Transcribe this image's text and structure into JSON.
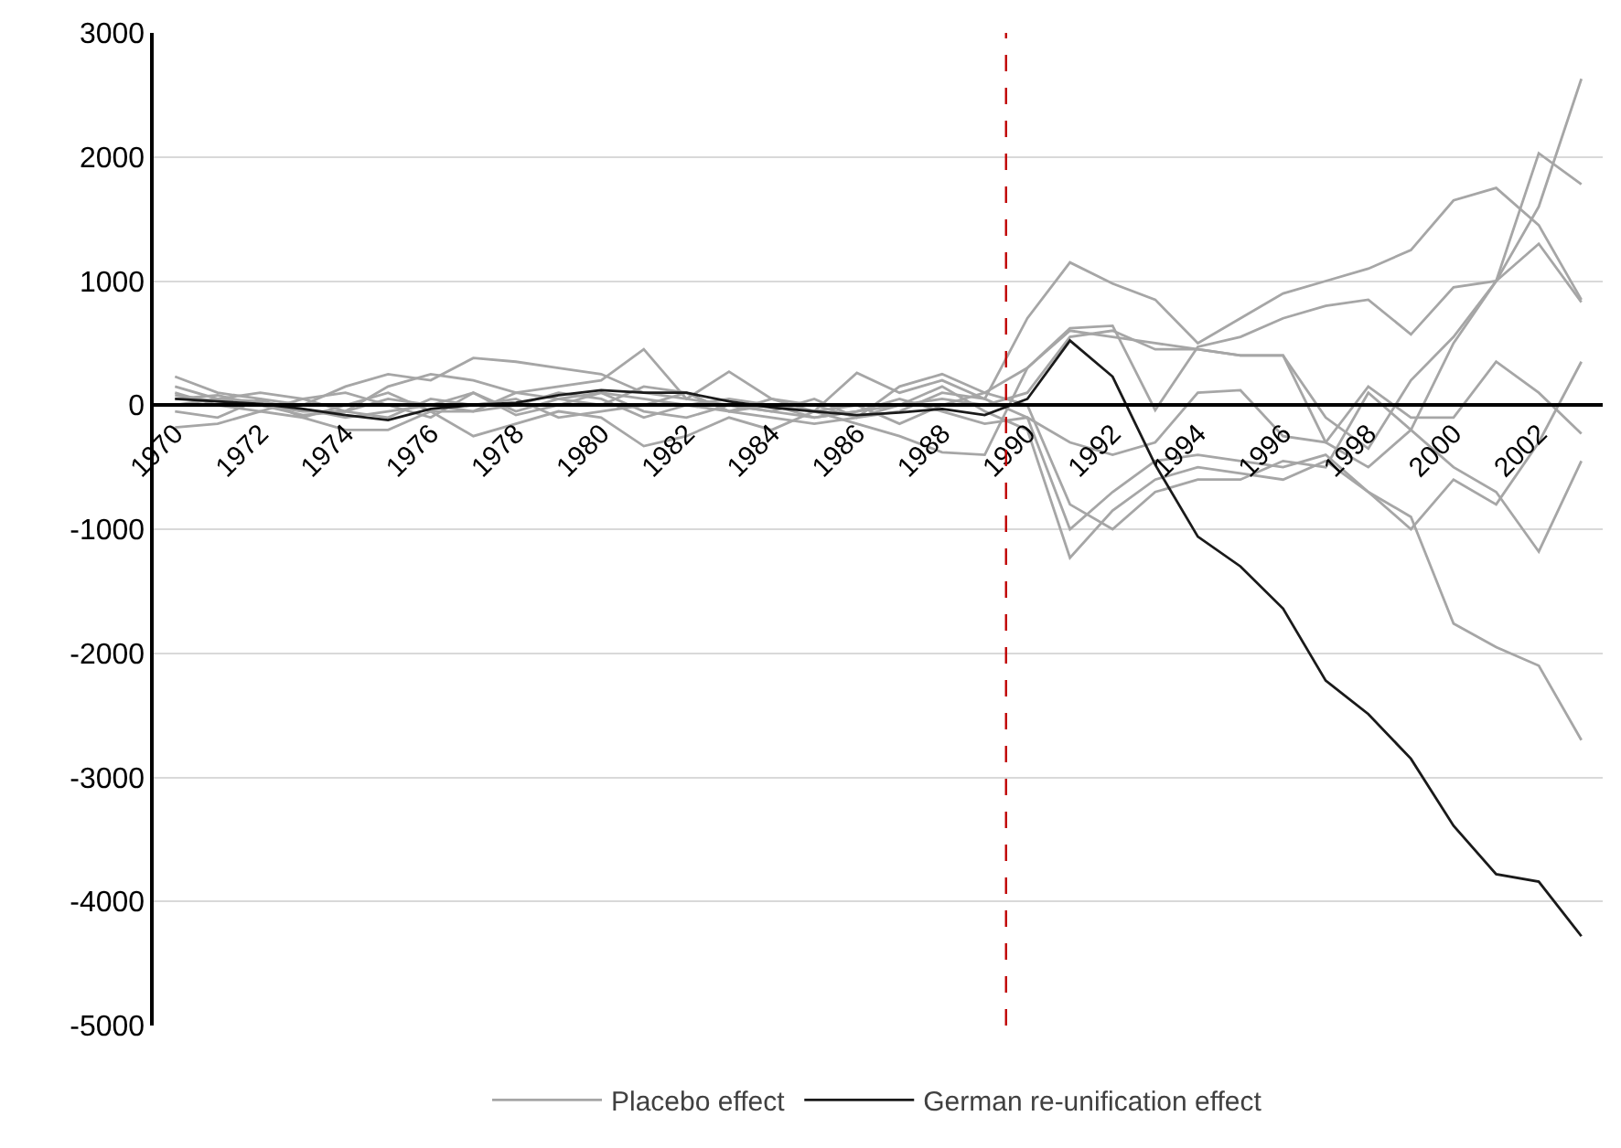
{
  "chart_data": {
    "type": "line",
    "x": [
      1970,
      1971,
      1972,
      1973,
      1974,
      1975,
      1976,
      1977,
      1978,
      1979,
      1980,
      1981,
      1982,
      1983,
      1984,
      1985,
      1986,
      1987,
      1988,
      1989,
      1990,
      1991,
      1992,
      1993,
      1994,
      1995,
      1996,
      1997,
      1998,
      1999,
      2000,
      2001,
      2002,
      2003
    ],
    "series": [
      {
        "name": "Placebo effect",
        "color": "#a6a6a6",
        "values": [
          230,
          100,
          50,
          0,
          150,
          250,
          200,
          380,
          350,
          300,
          250,
          100,
          50,
          0,
          -50,
          -100,
          -50,
          0,
          50,
          0,
          100,
          550,
          600,
          450,
          450,
          400,
          400,
          -100,
          -350,
          200,
          550,
          1000,
          1600,
          2630
        ]
      },
      {
        "color": "#a6a6a6",
        "values": [
          -180,
          -150,
          -50,
          -100,
          -200,
          -200,
          -50,
          -250,
          -150,
          -50,
          -100,
          -330,
          -250,
          -100,
          -200,
          -50,
          -150,
          -250,
          -380,
          -400,
          300,
          600,
          550,
          500,
          450,
          400,
          400,
          -300,
          -500,
          -200,
          500,
          1000,
          2030,
          1780
        ]
      },
      {
        "color": "#a6a6a6",
        "values": [
          150,
          50,
          100,
          50,
          -50,
          150,
          250,
          200,
          100,
          150,
          200,
          450,
          50,
          270,
          50,
          -50,
          260,
          100,
          200,
          50,
          700,
          1150,
          980,
          850,
          500,
          700,
          900,
          1000,
          1100,
          1250,
          1650,
          1750,
          1450,
          850
        ]
      },
      {
        "color": "#a6a6a6",
        "values": [
          100,
          0,
          -50,
          50,
          100,
          0,
          -100,
          100,
          -50,
          50,
          0,
          150,
          100,
          -50,
          -100,
          -150,
          -100,
          150,
          250,
          100,
          300,
          620,
          640,
          -40,
          470,
          550,
          700,
          800,
          850,
          570,
          950,
          1000,
          1300,
          830
        ]
      },
      {
        "color": "#a6a6a6",
        "values": [
          -50,
          -100,
          50,
          -100,
          0,
          100,
          -50,
          -50,
          0,
          100,
          50,
          -100,
          0,
          50,
          0,
          -100,
          -50,
          50,
          -50,
          -150,
          -100,
          -300,
          -400,
          -300,
          100,
          120,
          -250,
          -300,
          150,
          -100,
          -100,
          350,
          100,
          -230
        ]
      },
      {
        "color": "#a6a6a6",
        "values": [
          50,
          80,
          0,
          -50,
          -50,
          -100,
          50,
          0,
          50,
          -100,
          -50,
          0,
          100,
          -50,
          50,
          0,
          -100,
          -50,
          100,
          50,
          -100,
          -1000,
          -700,
          -450,
          -400,
          -450,
          -500,
          -400,
          -700,
          -1000,
          -600,
          -800,
          -300,
          350
        ]
      },
      {
        "color": "#a6a6a6",
        "values": [
          0,
          50,
          30,
          -30,
          -100,
          -50,
          0,
          -50,
          100,
          50,
          100,
          -50,
          -100,
          0,
          -50,
          50,
          -100,
          0,
          150,
          -50,
          -200,
          -1230,
          -850,
          -600,
          -500,
          -550,
          -600,
          -450,
          -700,
          -900,
          -1760,
          -1950,
          -2100,
          -2700
        ]
      },
      {
        "color": "#a6a6a6",
        "values": [
          80,
          30,
          0,
          -80,
          -50,
          50,
          0,
          100,
          -80,
          0,
          100,
          50,
          0,
          -50,
          0,
          -50,
          0,
          -150,
          0,
          100,
          0,
          -800,
          -1000,
          -700,
          -600,
          -600,
          -450,
          -500,
          100,
          -200,
          -500,
          -700,
          -1180,
          -450
        ]
      },
      {
        "name": "German re-unification effect",
        "color": "#1a1a1a",
        "values": [
          50,
          30,
          10,
          -30,
          -80,
          -120,
          -30,
          0,
          20,
          80,
          120,
          100,
          100,
          30,
          -20,
          -50,
          -80,
          -60,
          -30,
          -80,
          50,
          520,
          230,
          -480,
          -1060,
          -1300,
          -1640,
          -2220,
          -2490,
          -2850,
          -3390,
          -3780,
          -3840,
          -4280
        ]
      }
    ],
    "xlim": [
      1969.5,
      2003.5
    ],
    "xticks": [
      1970,
      1972,
      1974,
      1976,
      1978,
      1980,
      1982,
      1984,
      1986,
      1988,
      1990,
      1992,
      1994,
      1996,
      1998,
      2000,
      2002
    ],
    "ylim": [
      -5000,
      3000
    ],
    "yticks": [
      -5000,
      -4000,
      -3000,
      -2000,
      -1000,
      0,
      1000,
      2000,
      3000
    ],
    "ref_lines": [
      {
        "axis": "x",
        "value": 1989.5,
        "color": "#c00000",
        "line_style": "dashed"
      }
    ],
    "grid": "y",
    "legend": "bottom",
    "marker": "none",
    "line_style": "solid"
  }
}
